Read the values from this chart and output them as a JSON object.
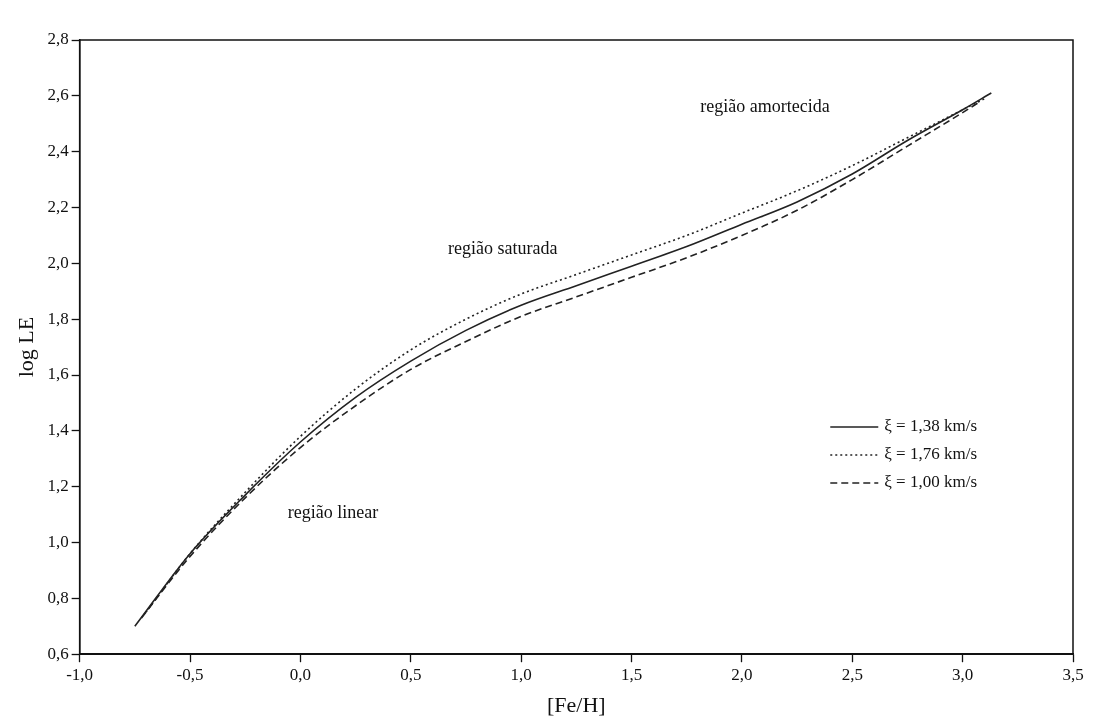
{
  "chart_data": {
    "type": "line",
    "xlabel": "[Fe/H]",
    "ylabel": "log LE",
    "x": [
      -0.75,
      -0.5,
      -0.25,
      0,
      0.25,
      0.5,
      0.75,
      1.0,
      1.25,
      1.5,
      1.75,
      2.0,
      2.25,
      2.5,
      2.75,
      3.0,
      3.13
    ],
    "series": [
      {
        "name": "ξ = 1,38 km/s",
        "color": "#222222",
        "line_style": "solid",
        "values": [
          0.7,
          0.96,
          1.17,
          1.36,
          1.52,
          1.65,
          1.76,
          1.85,
          1.92,
          1.99,
          2.06,
          2.14,
          2.22,
          2.32,
          2.44,
          2.55,
          2.61
        ]
      },
      {
        "name": "ξ = 1,76 km/s",
        "color": "#222222",
        "line_style": "dotted",
        "x": [
          -0.7,
          -0.5,
          -0.25,
          0,
          0.25,
          0.5,
          0.75,
          1.0,
          1.25,
          1.5,
          1.75,
          2.0,
          2.25,
          2.5,
          2.75,
          3.0,
          3.1
        ],
        "values": [
          0.75,
          0.96,
          1.18,
          1.38,
          1.55,
          1.69,
          1.8,
          1.89,
          1.96,
          2.03,
          2.1,
          2.18,
          2.26,
          2.35,
          2.45,
          2.55,
          2.59
        ]
      },
      {
        "name": "ξ = 1,00 km/s",
        "color": "#222222",
        "line_style": "dashed",
        "x": [
          -0.72,
          -0.5,
          -0.25,
          0,
          0.25,
          0.5,
          0.75,
          1.0,
          1.25,
          1.5,
          1.75,
          2.0,
          2.25,
          2.5,
          2.75,
          3.0,
          3.08
        ],
        "values": [
          0.73,
          0.95,
          1.16,
          1.34,
          1.49,
          1.62,
          1.72,
          1.81,
          1.88,
          1.95,
          2.02,
          2.1,
          2.19,
          2.3,
          2.42,
          2.54,
          2.58
        ]
      }
    ],
    "xlim": [
      -1.0,
      3.5
    ],
    "xticks": [
      {
        "value": -1.0,
        "label": "-1,0"
      },
      {
        "value": -0.5,
        "label": "-0,5"
      },
      {
        "value": 0,
        "label": "0,0"
      },
      {
        "value": 0.5,
        "label": "0,5"
      },
      {
        "value": 1.0,
        "label": "1,0"
      },
      {
        "value": 1.5,
        "label": "1,5"
      },
      {
        "value": 2.0,
        "label": "2,0"
      },
      {
        "value": 2.5,
        "label": "2,5"
      },
      {
        "value": 3.0,
        "label": "3,0"
      },
      {
        "value": 3.5,
        "label": "3,5"
      }
    ],
    "ylim": [
      0.6,
      2.8
    ],
    "yticks": [
      {
        "value": 0.6,
        "label": "0,6"
      },
      {
        "value": 0.8,
        "label": "0,8"
      },
      {
        "value": 1.0,
        "label": "1,0"
      },
      {
        "value": 1.2,
        "label": "1,2"
      },
      {
        "value": 1.4,
        "label": "1,4"
      },
      {
        "value": 1.6,
        "label": "1,6"
      },
      {
        "value": 1.8,
        "label": "1,8"
      },
      {
        "value": 2.0,
        "label": "2,0"
      },
      {
        "value": 2.2,
        "label": "2,2"
      },
      {
        "value": 2.4,
        "label": "2,4"
      },
      {
        "value": 2.6,
        "label": "2,6"
      },
      {
        "value": 2.8,
        "label": "2,8"
      }
    ],
    "annotations": [
      "região linear",
      "região saturada",
      "região amortecida"
    ],
    "legend": "right",
    "marker": "none",
    "grid": false
  }
}
